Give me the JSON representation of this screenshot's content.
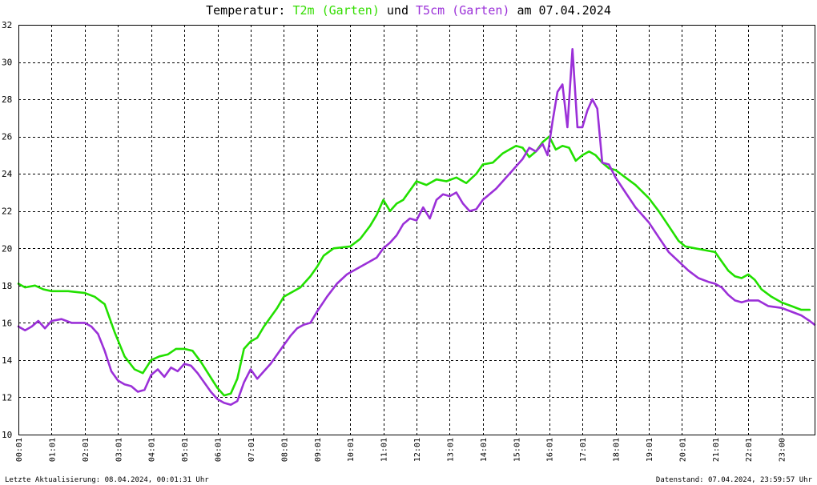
{
  "title": {
    "prefix": "Temperatur: ",
    "series1": "T2m (Garten)",
    "middle": " und ",
    "series2": "T5cm (Garten)",
    "suffix": " am 07.04.2024"
  },
  "footer": {
    "left": "Letzte Aktualisierung: 08.04.2024, 00:01:31 Uhr",
    "right": "Datenstand: 07.04.2024, 23:59:57 Uhr"
  },
  "chart_data": {
    "type": "line",
    "ylim": [
      10,
      32
    ],
    "xlim": [
      0,
      24
    ],
    "grid": true,
    "yticks": [
      "10",
      "12",
      "14",
      "16",
      "18",
      "20",
      "22",
      "24",
      "26",
      "28",
      "30",
      "32"
    ],
    "xticks": [
      "00:01",
      "01:01",
      "02:01",
      "03:01",
      "04:01",
      "05:01",
      "06:01",
      "07:01",
      "08:01",
      "09:01",
      "10:01",
      "11:01",
      "12:01",
      "13:01",
      "14:01",
      "15:01",
      "16:01",
      "17:01",
      "18:01",
      "19:01",
      "20:01",
      "21:01",
      "22:01",
      "23:00"
    ],
    "series": [
      {
        "name": "T2m (Garten)",
        "color": "#22e000",
        "x": [
          0,
          0.2,
          0.5,
          0.75,
          1.0,
          1.5,
          2.0,
          2.3,
          2.6,
          2.9,
          3.2,
          3.5,
          3.75,
          4.0,
          4.25,
          4.5,
          4.75,
          5.0,
          5.25,
          5.5,
          5.75,
          6.0,
          6.2,
          6.4,
          6.6,
          6.8,
          7.0,
          7.2,
          7.4,
          7.6,
          7.8,
          8.0,
          8.5,
          8.8,
          9.0,
          9.2,
          9.5,
          10.0,
          10.3,
          10.6,
          10.8,
          11.0,
          11.2,
          11.4,
          11.6,
          11.8,
          12.0,
          12.3,
          12.6,
          12.9,
          13.2,
          13.5,
          13.8,
          14.0,
          14.3,
          14.6,
          14.8,
          15.0,
          15.2,
          15.4,
          15.6,
          15.8,
          16.0,
          16.2,
          16.4,
          16.6,
          16.8,
          17.0,
          17.2,
          17.4,
          17.6,
          17.8,
          18.0,
          18.3,
          18.6,
          19.0,
          19.3,
          19.6,
          19.9,
          20.1,
          20.4,
          20.7,
          21.0,
          21.2,
          21.4,
          21.6,
          21.8,
          22.0,
          22.2,
          22.4,
          22.7,
          23.0,
          23.3,
          23.6,
          23.85
        ],
        "y": [
          18.1,
          17.9,
          18.0,
          17.8,
          17.7,
          17.7,
          17.6,
          17.4,
          17.0,
          15.5,
          14.2,
          13.5,
          13.3,
          14.0,
          14.2,
          14.3,
          14.6,
          14.6,
          14.5,
          13.9,
          13.2,
          12.5,
          12.1,
          12.2,
          13.0,
          14.6,
          15.0,
          15.2,
          15.8,
          16.3,
          16.8,
          17.4,
          17.9,
          18.5,
          19.0,
          19.6,
          20.0,
          20.1,
          20.5,
          21.2,
          21.8,
          22.6,
          22.0,
          22.4,
          22.6,
          23.1,
          23.6,
          23.4,
          23.7,
          23.6,
          23.8,
          23.5,
          24.0,
          24.5,
          24.6,
          25.1,
          25.3,
          25.5,
          25.4,
          24.9,
          25.2,
          25.7,
          26.0,
          25.3,
          25.5,
          25.4,
          24.7,
          25.0,
          25.2,
          25.0,
          24.6,
          24.3,
          24.2,
          23.8,
          23.4,
          22.7,
          22.0,
          21.2,
          20.4,
          20.1,
          20.0,
          19.9,
          19.8,
          19.3,
          18.8,
          18.5,
          18.4,
          18.6,
          18.3,
          17.8,
          17.4,
          17.1,
          16.9,
          16.7,
          16.7
        ]
      },
      {
        "name": "T5cm (Garten)",
        "color": "#9b30d8",
        "x": [
          0,
          0.2,
          0.4,
          0.6,
          0.8,
          1.0,
          1.3,
          1.6,
          2.0,
          2.2,
          2.4,
          2.6,
          2.8,
          3.0,
          3.2,
          3.4,
          3.6,
          3.8,
          4.0,
          4.2,
          4.4,
          4.6,
          4.8,
          5.0,
          5.2,
          5.4,
          5.6,
          5.8,
          6.0,
          6.2,
          6.4,
          6.6,
          6.8,
          7.0,
          7.2,
          7.4,
          7.6,
          7.8,
          8.0,
          8.2,
          8.4,
          8.6,
          8.8,
          9.0,
          9.3,
          9.6,
          9.9,
          10.2,
          10.5,
          10.8,
          11.0,
          11.2,
          11.4,
          11.6,
          11.8,
          12.0,
          12.2,
          12.4,
          12.6,
          12.8,
          13.0,
          13.2,
          13.4,
          13.6,
          13.8,
          14.0,
          14.2,
          14.4,
          14.6,
          14.8,
          15.0,
          15.2,
          15.4,
          15.6,
          15.8,
          15.95,
          16.1,
          16.25,
          16.4,
          16.55,
          16.7,
          16.85,
          17.0,
          17.15,
          17.3,
          17.45,
          17.6,
          17.8,
          18.0,
          18.3,
          18.6,
          19.0,
          19.3,
          19.6,
          19.9,
          20.2,
          20.5,
          20.8,
          21.0,
          21.2,
          21.4,
          21.6,
          21.8,
          22.0,
          22.3,
          22.6,
          23.0,
          23.3,
          23.6,
          23.85,
          24.0
        ],
        "y": [
          15.8,
          15.6,
          15.8,
          16.1,
          15.7,
          16.1,
          16.2,
          16.0,
          16.0,
          15.8,
          15.4,
          14.5,
          13.4,
          12.9,
          12.7,
          12.6,
          12.3,
          12.4,
          13.2,
          13.5,
          13.1,
          13.6,
          13.4,
          13.8,
          13.7,
          13.3,
          12.8,
          12.3,
          11.9,
          11.7,
          11.6,
          11.8,
          12.8,
          13.5,
          13.0,
          13.4,
          13.8,
          14.3,
          14.8,
          15.3,
          15.7,
          15.9,
          16.0,
          16.6,
          17.4,
          18.1,
          18.6,
          18.9,
          19.2,
          19.5,
          20.0,
          20.3,
          20.7,
          21.3,
          21.6,
          21.5,
          22.2,
          21.6,
          22.6,
          22.9,
          22.8,
          23.0,
          22.4,
          22.0,
          22.1,
          22.6,
          22.9,
          23.2,
          23.6,
          24.0,
          24.4,
          24.8,
          25.4,
          25.2,
          25.6,
          25.0,
          26.8,
          28.4,
          28.8,
          26.5,
          30.7,
          26.5,
          26.5,
          27.4,
          28.0,
          27.5,
          24.6,
          24.5,
          23.8,
          23.0,
          22.2,
          21.4,
          20.6,
          19.8,
          19.3,
          18.8,
          18.4,
          18.2,
          18.1,
          17.9,
          17.5,
          17.2,
          17.1,
          17.2,
          17.2,
          16.9,
          16.8,
          16.6,
          16.4,
          16.1,
          15.9
        ]
      }
    ]
  }
}
